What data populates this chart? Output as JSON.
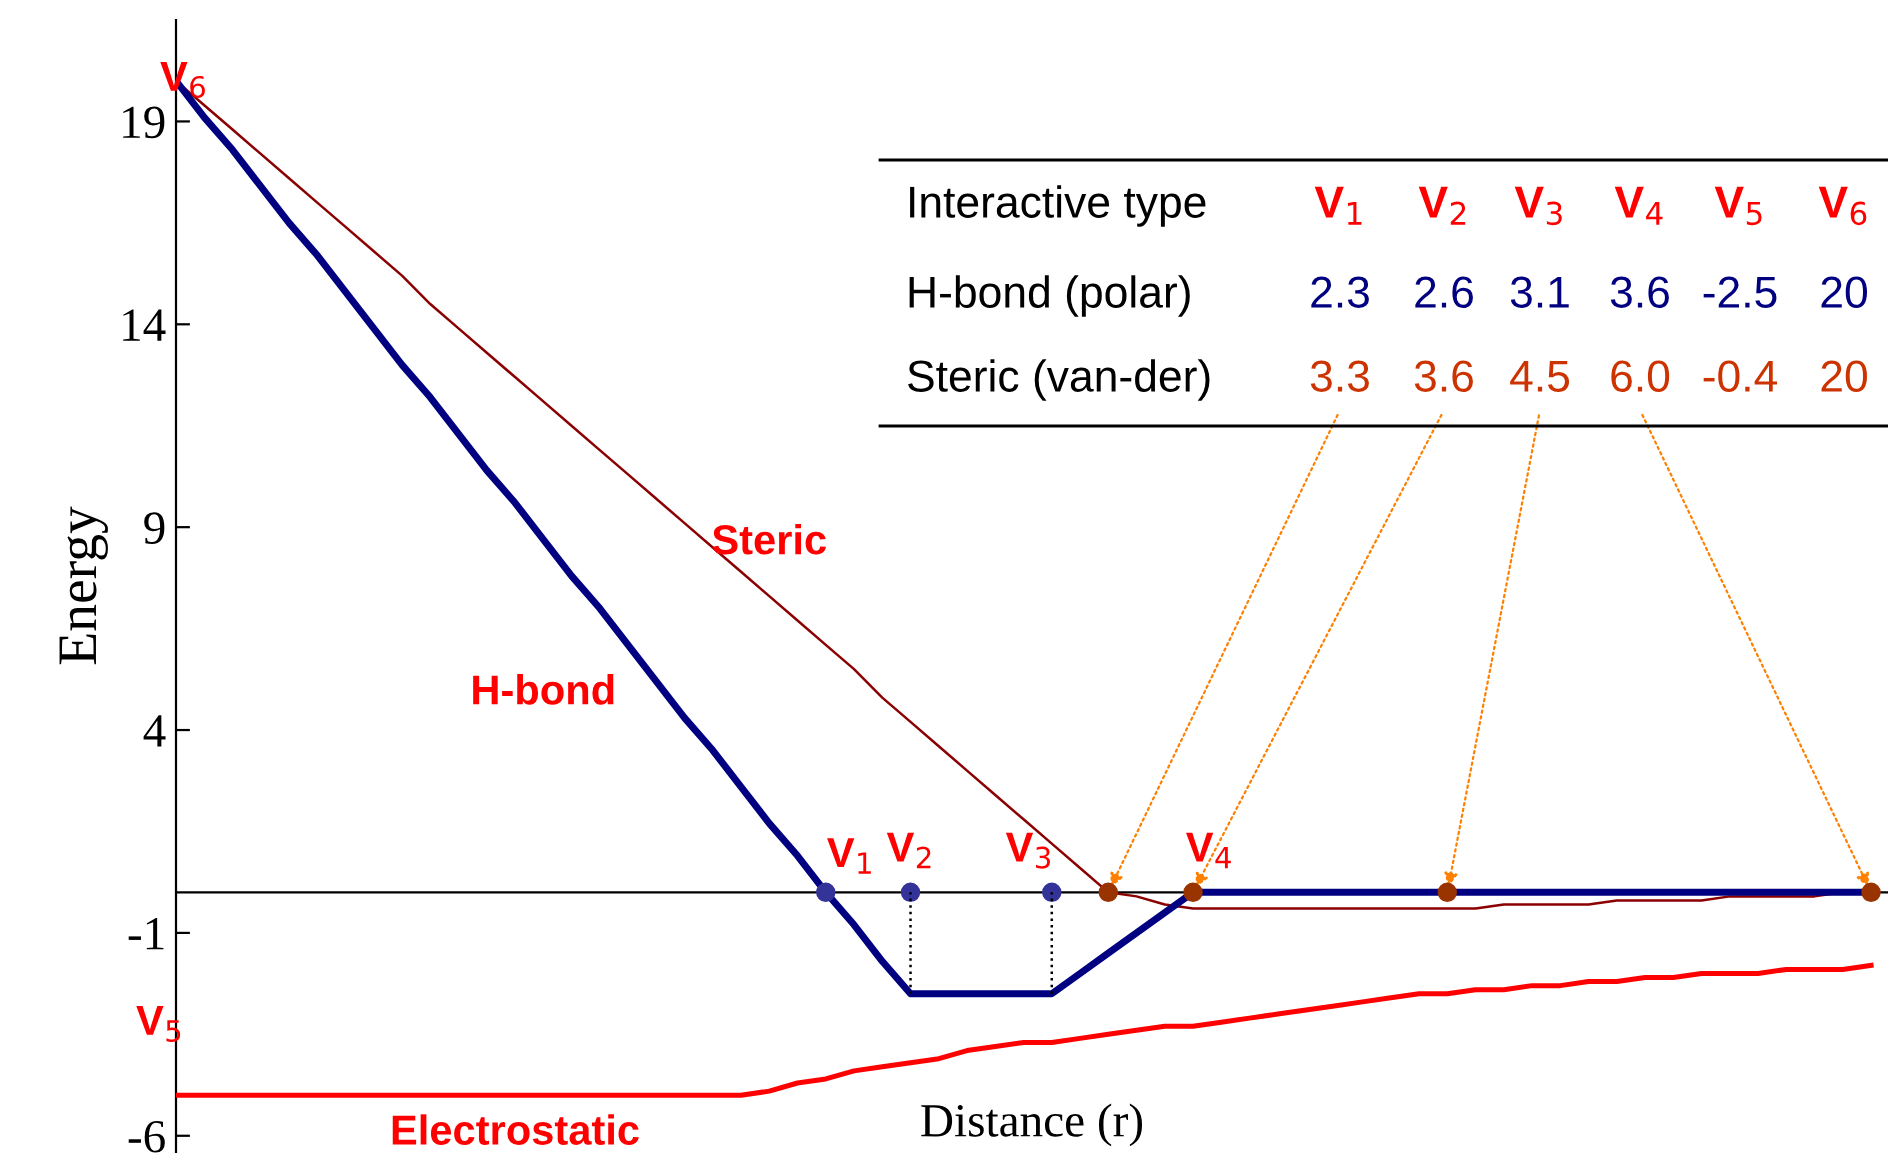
{
  "chart_data": {
    "type": "line",
    "xlabel": "Distance (r)",
    "ylabel": "Energy",
    "ylim": [
      -6.4,
      21.5
    ],
    "yticks": [
      19,
      14,
      9,
      4,
      -1,
      -6
    ],
    "tick_labels": "y",
    "marker": "none",
    "categories": [
      null,
      null,
      null,
      null,
      null,
      null,
      null,
      null,
      null,
      null,
      null,
      null,
      null,
      null,
      null,
      null,
      null,
      null,
      null,
      null,
      null,
      null,
      null,
      null,
      null,
      null,
      null,
      null,
      null,
      null,
      null,
      null,
      null,
      null,
      null,
      null,
      null,
      null,
      null,
      null,
      null,
      null,
      null,
      null,
      null,
      null,
      null,
      null,
      null,
      null,
      null,
      null,
      null,
      null,
      null,
      null,
      null,
      null,
      null,
      null,
      null
    ],
    "series": [
      {
        "name": "Steric",
        "color": "#8b0000",
        "values": [
          20.0,
          19.4,
          18.8,
          18.2,
          17.6,
          17.0,
          16.4,
          15.8,
          15.2,
          14.5,
          13.9,
          13.3,
          12.7,
          12.1,
          11.5,
          10.9,
          10.3,
          9.7,
          9.1,
          8.5,
          7.9,
          7.3,
          6.7,
          6.1,
          5.5,
          4.8,
          4.2,
          3.6,
          3.0,
          2.4,
          1.8,
          1.2,
          0.6,
          0.0,
          -0.1,
          -0.3,
          -0.4,
          -0.4,
          -0.4,
          -0.4,
          -0.4,
          -0.4,
          -0.4,
          -0.4,
          -0.4,
          -0.4,
          -0.4,
          -0.3,
          -0.3,
          -0.3,
          -0.3,
          -0.2,
          -0.2,
          -0.2,
          -0.2,
          -0.1,
          -0.1,
          -0.1,
          -0.1,
          0.0,
          0.0
        ]
      },
      {
        "name": "H-bond",
        "color": "#000080",
        "values": [
          20.0,
          19.1,
          18.3,
          17.4,
          16.5,
          15.7,
          14.8,
          13.9,
          13.0,
          12.2,
          11.3,
          10.4,
          9.6,
          8.7,
          7.8,
          7.0,
          6.1,
          5.2,
          4.3,
          3.5,
          2.6,
          1.7,
          0.9,
          0.0,
          -0.8,
          -1.7,
          -2.5,
          -2.5,
          -2.5,
          -2.5,
          -2.5,
          -2.5,
          -2.0,
          -1.5,
          -1.0,
          -0.5,
          0,
          0,
          0,
          0,
          0,
          0,
          0,
          0,
          0,
          0,
          0,
          0,
          0,
          0,
          0,
          0,
          0,
          0,
          0,
          0,
          0,
          0,
          0,
          0,
          0
        ]
      },
      {
        "name": "Electrostatic",
        "color": "#ff0000",
        "values": [
          -5,
          -5,
          -5,
          -5,
          -5,
          -5,
          -5,
          -5,
          -5,
          -5,
          -5,
          -5,
          -5,
          -5,
          -5,
          -5,
          -5,
          -5,
          -5,
          -5,
          -5,
          -4.9,
          -4.7,
          -4.6,
          -4.4,
          -4.3,
          -4.2,
          -4.1,
          -3.9,
          -3.8,
          -3.7,
          -3.7,
          -3.6,
          -3.5,
          -3.4,
          -3.3,
          -3.3,
          -3.2,
          -3.1,
          -3.0,
          -2.9,
          -2.8,
          -2.7,
          -2.6,
          -2.5,
          -2.5,
          -2.4,
          -2.4,
          -2.3,
          -2.3,
          -2.2,
          -2.2,
          -2.1,
          -2.1,
          -2.0,
          -2.0,
          -2.0,
          -1.9,
          -1.9,
          -1.9,
          -1.8
        ]
      },
      {
        "type": "scatter",
        "marker": "circle",
        "color": "#333399",
        "values": [
          null,
          null,
          null,
          null,
          null,
          null,
          null,
          null,
          null,
          null,
          null,
          null,
          null,
          null,
          null,
          null,
          null,
          null,
          null,
          null,
          null,
          null,
          null,
          0,
          null,
          null,
          0,
          null,
          null,
          null,
          null,
          0,
          null,
          null,
          null,
          null,
          null,
          null,
          null,
          null,
          null,
          null,
          null,
          null,
          null,
          null,
          null,
          null,
          null,
          null,
          null,
          null,
          null,
          null,
          null,
          null,
          null,
          null,
          null,
          null,
          null
        ],
        "errors": [
          null,
          null,
          null,
          null,
          null,
          null,
          null,
          null,
          null,
          null,
          null,
          null,
          null,
          null,
          null,
          null,
          null,
          null,
          null,
          null,
          null,
          null,
          null,
          null,
          null,
          null,
          [
            -2.5,
            0
          ],
          null,
          null,
          null,
          null,
          [
            -2.5,
            0
          ],
          null,
          null,
          null,
          null,
          null,
          null,
          null,
          null,
          null,
          null,
          null,
          null,
          null,
          null,
          null,
          null,
          null,
          null,
          null,
          null,
          null,
          null,
          null,
          null,
          null,
          null,
          null,
          null,
          null
        ]
      },
      {
        "type": "scatter",
        "marker": "circle",
        "color": "#993300",
        "values": [
          null,
          null,
          null,
          null,
          null,
          null,
          null,
          null,
          null,
          null,
          null,
          null,
          null,
          null,
          null,
          null,
          null,
          null,
          null,
          null,
          null,
          null,
          null,
          null,
          null,
          null,
          null,
          null,
          null,
          null,
          null,
          null,
          null,
          0,
          null,
          null,
          0,
          null,
          null,
          null,
          null,
          null,
          null,
          null,
          null,
          0,
          null,
          null,
          null,
          null,
          null,
          null,
          null,
          null,
          null,
          null,
          null,
          null,
          null,
          null,
          0
        ]
      }
    ],
    "ref_lines": [
      {
        "axis": "y",
        "value": 0,
        "color": "#000000"
      }
    ],
    "annotations": [
      "V$_{1}$",
      "V$_{2}$",
      "V$_{3}$",
      "V$_{4}$",
      "V$_{5}$",
      "V$_{6}$",
      "Interactive type",
      "V$_{1}$",
      "V$_{2}$",
      "V$_{3}$",
      "V$_{4}$",
      "V$_{5}$",
      "V$_{6}$",
      "H-bond (polar)",
      "2.3",
      "2.6",
      "3.1",
      "3.6",
      "-2.5",
      "20",
      "Steric (van-der)",
      "3.3",
      "3.6",
      "4.5",
      "6.0",
      "-0.4",
      "20"
    ]
  }
}
